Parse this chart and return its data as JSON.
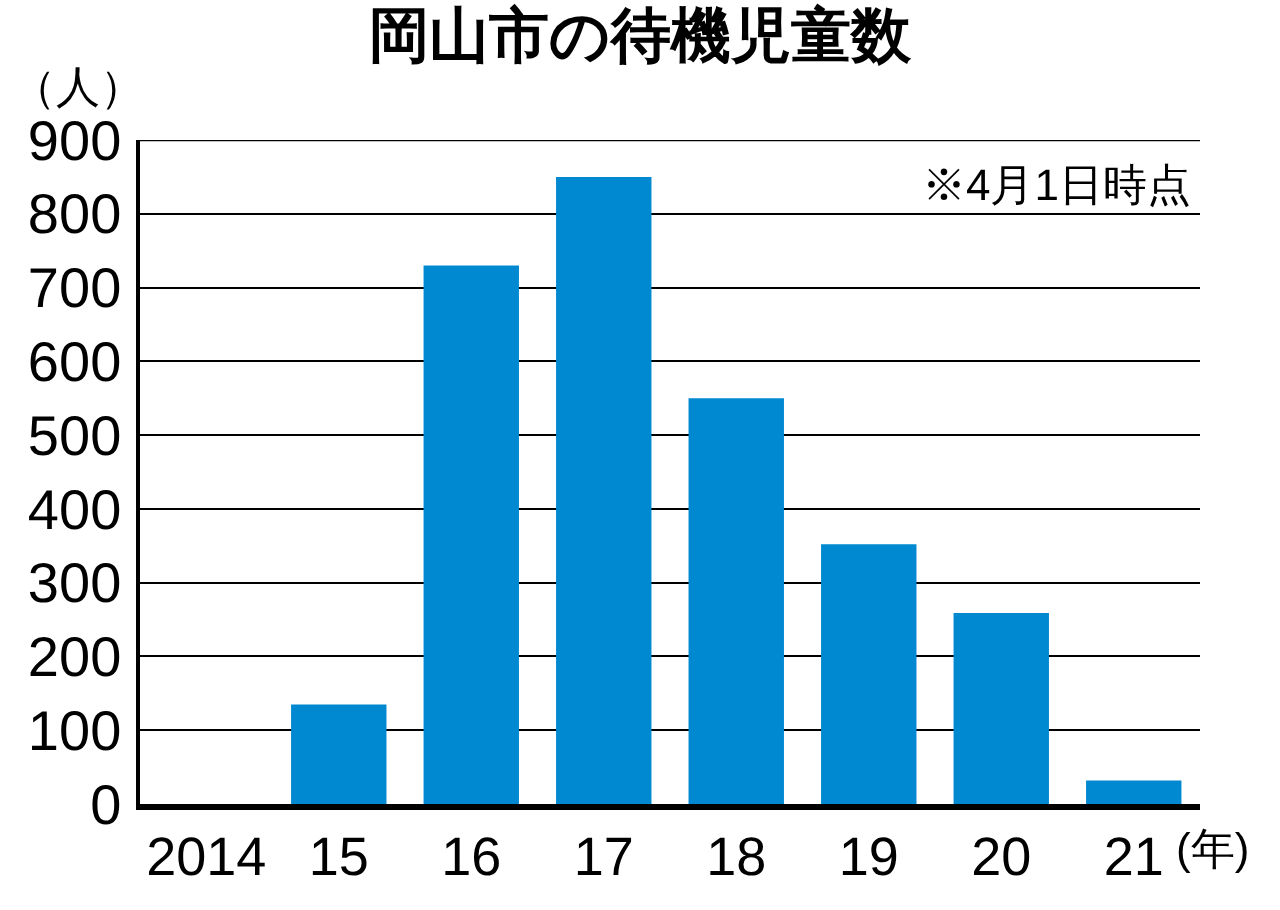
{
  "chart_data": {
    "type": "bar",
    "title": "岡山市の待機児童数",
    "ylabel": "（人）",
    "xlabel": "(年)",
    "annotations": [
      "※4月1日時点"
    ],
    "categories": [
      "2014",
      "15",
      "16",
      "17",
      "18",
      "19",
      "20",
      "21"
    ],
    "values": [
      0,
      135,
      730,
      850,
      550,
      352,
      259,
      32
    ],
    "color": "#0088d1",
    "ylim": [
      0,
      900
    ],
    "yticks": [
      0,
      100,
      200,
      300,
      400,
      500,
      600,
      700,
      800,
      900
    ],
    "grid": "y"
  }
}
